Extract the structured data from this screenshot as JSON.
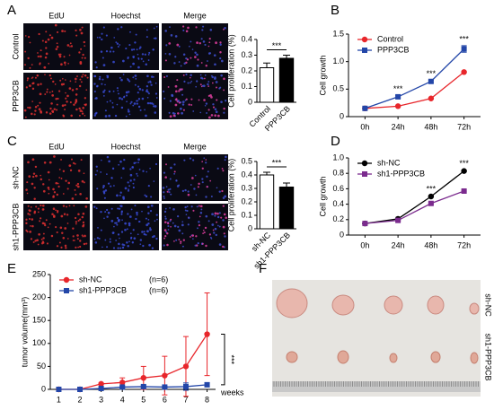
{
  "panel_labels": [
    "A",
    "B",
    "C",
    "D",
    "E",
    "F"
  ],
  "image_panels": [
    {
      "columns": [
        "EdU",
        "Hoechst",
        "Merge"
      ],
      "rows": [
        "Control",
        "PPP3CB"
      ]
    },
    {
      "columns": [
        "EdU",
        "Hoechst",
        "Merge"
      ],
      "rows": [
        "sh-NC",
        "sh1-PPP3CB"
      ]
    }
  ],
  "photo": {
    "rows": [
      "sh-NC",
      "sh1-PPP3CB"
    ]
  },
  "chart_data": [
    {
      "type": "bar",
      "ylabel": "Cell proliferation (%)",
      "categories": [
        "Control",
        "PPP3CB"
      ],
      "values": [
        0.22,
        0.28
      ],
      "errors": [
        0.03,
        0.02
      ],
      "colors": [
        "#ffffff",
        "#000000"
      ],
      "ylim": [
        0,
        0.4
      ],
      "yticks": [
        0,
        0.1,
        0.2,
        0.3,
        0.4
      ],
      "annotation": "***"
    },
    {
      "type": "line",
      "ylabel": "Cell growth",
      "categories": [
        "0h",
        "24h",
        "48h",
        "72h"
      ],
      "series": [
        {
          "name": "Control",
          "color": "#e8262b",
          "marker": "circle",
          "values": [
            0.15,
            0.19,
            0.33,
            0.81
          ],
          "errors": [
            0.01,
            0.01,
            0.01,
            0.01
          ]
        },
        {
          "name": "PPP3CB",
          "color": "#2346a8",
          "marker": "square",
          "values": [
            0.15,
            0.36,
            0.64,
            1.23
          ],
          "errors": [
            0.01,
            0.02,
            0.02,
            0.06
          ]
        }
      ],
      "ylim": [
        0,
        1.5
      ],
      "yticks": [
        0,
        0.5,
        {
          "value": 1,
          "label": "1.0"
        },
        1.5
      ],
      "legend": "upper left",
      "annotations": [
        "***",
        "***",
        "***"
      ]
    },
    {
      "type": "bar",
      "ylabel": "Cell proliferation (%)",
      "categories": [
        "sh-NC",
        "sh1-PPP3CB"
      ],
      "values": [
        0.4,
        0.31
      ],
      "errors": [
        0.02,
        0.03
      ],
      "colors": [
        "#ffffff",
        "#000000"
      ],
      "ylim": [
        0,
        0.5
      ],
      "yticks": [
        0,
        0.1,
        0.2,
        0.3,
        0.4,
        0.5
      ],
      "annotation": "***"
    },
    {
      "type": "line",
      "ylabel": "Cell growth",
      "categories": [
        "0h",
        "24h",
        "48h",
        "72h"
      ],
      "series": [
        {
          "name": "sh-NC",
          "color": "#000000",
          "marker": "circle",
          "values": [
            0.15,
            0.21,
            0.5,
            0.83
          ],
          "errors": [
            0.005,
            0.01,
            0.01,
            0.01
          ]
        },
        {
          "name": "sh1-PPP3CB",
          "color": "#7b2b8e",
          "marker": "square",
          "values": [
            0.15,
            0.19,
            0.41,
            0.57
          ],
          "errors": [
            0.005,
            0.01,
            0.01,
            0.01
          ]
        }
      ],
      "ylim": [
        0,
        1
      ],
      "yticks": [
        0,
        0.2,
        0.4,
        0.6,
        0.8,
        {
          "value": 1,
          "label": "1.0"
        }
      ],
      "legend": "upper left",
      "annotations": [
        "***",
        "***"
      ]
    },
    {
      "type": "line",
      "ylabel": "tumor volume(mm³)",
      "xlabel": "weeks",
      "x": [
        1,
        2,
        3,
        4,
        5,
        6,
        7,
        8
      ],
      "xlim": [
        0.6,
        8.4
      ],
      "xticks": [
        1,
        2,
        3,
        4,
        5,
        6,
        7,
        8
      ],
      "series": [
        {
          "name": "sh-NC",
          "note": "(n=6)",
          "color": "#e8262b",
          "marker": "circle",
          "values": [
            0,
            0,
            12,
            15,
            25,
            30,
            50,
            120
          ],
          "errors": [
            0,
            0,
            2,
            10,
            25,
            42,
            65,
            90
          ]
        },
        {
          "name": "sh1-PPP3CB",
          "note": "(n=6)",
          "color": "#2346a8",
          "marker": "square",
          "values": [
            0,
            0,
            2,
            5,
            6,
            5,
            6,
            10
          ],
          "errors": [
            0,
            0,
            1,
            2,
            3,
            2,
            8,
            4
          ]
        }
      ],
      "ylim": [
        0,
        250
      ],
      "yticks": [
        0,
        50,
        100,
        150,
        200,
        250
      ],
      "legend": "upper left",
      "annotations": [
        "***"
      ]
    }
  ]
}
